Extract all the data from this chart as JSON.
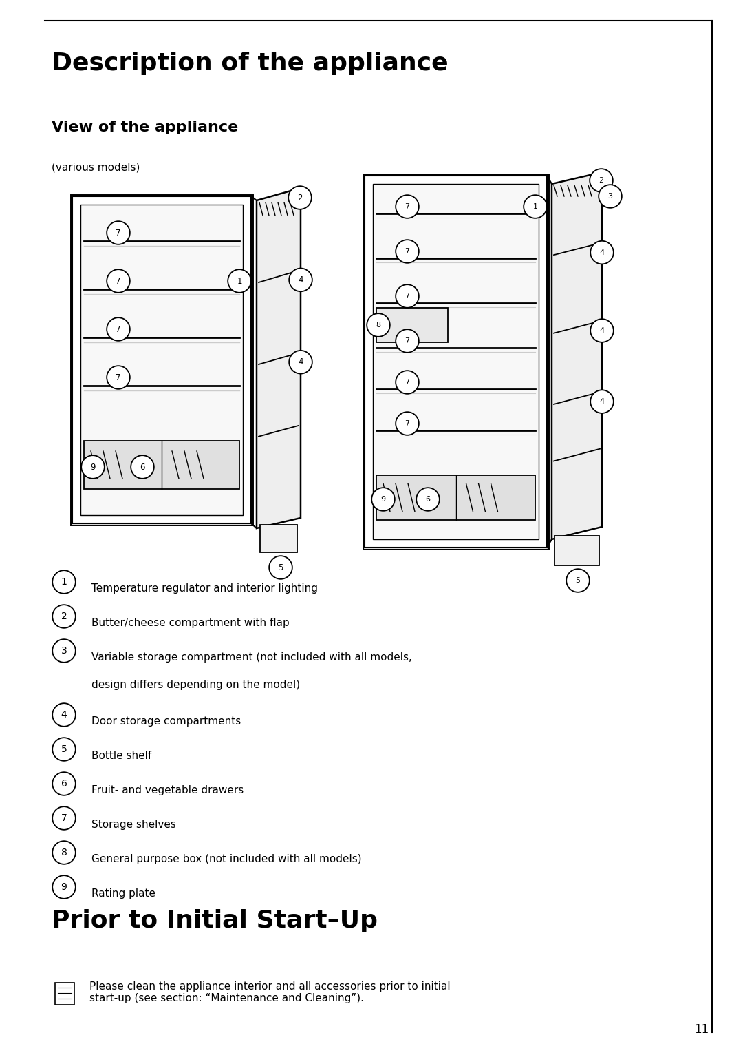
{
  "title": "Description of the appliance",
  "subtitle": "View of the appliance",
  "subtitle2": "(various models)",
  "section2_title": "Prior to Initial Start–Up",
  "note_text": "Please clean the appliance interior and all accessories prior to initial\nstart-up (see section: “Maintenance and Cleaning”).",
  "legend_items": [
    {
      "num": "1",
      "text": "Temperature regulator and interior lighting"
    },
    {
      "num": "2",
      "text": "Butter/cheese compartment with flap"
    },
    {
      "num": "3",
      "text": "Variable storage compartment (not included with all models,\ndesign differs depending on the model)"
    },
    {
      "num": "4",
      "text": "Door storage compartments"
    },
    {
      "num": "5",
      "text": "Bottle shelf"
    },
    {
      "num": "6",
      "text": "Fruit- and vegetable drawers"
    },
    {
      "num": "7",
      "text": "Storage shelves"
    },
    {
      "num": "8",
      "text": "General purpose box (not included with all models)"
    },
    {
      "num": "9",
      "text": "Rating plate"
    }
  ],
  "bg_color": "#ffffff",
  "text_color": "#000000",
  "page_number": "11"
}
